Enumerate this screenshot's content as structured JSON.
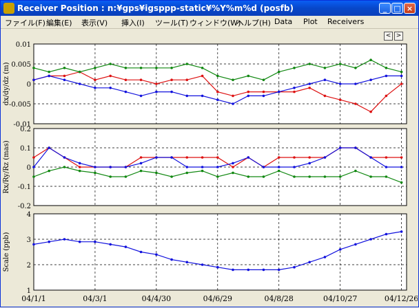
{
  "window": {
    "title": "Receiver Position : n:¥gps¥igsppp-static¥%Y%m%d (posfb)",
    "minimize": "_",
    "maximize": "□",
    "close": "×"
  },
  "menu": [
    {
      "label": "ファイル(F)"
    },
    {
      "label": "編集(E)"
    },
    {
      "label": "表示(V)"
    },
    {
      "label": "挿入(I)"
    },
    {
      "label": "ツール(T)"
    },
    {
      "label": "ウィンドウ(W)"
    },
    {
      "label": "ヘルプ(H)"
    },
    {
      "label": "Data"
    },
    {
      "label": "Plot"
    },
    {
      "label": "Receivers"
    }
  ],
  "nav": {
    "prev": "<",
    "next": ">"
  },
  "colors": {
    "series1": "#dd1111",
    "series2": "#118811",
    "series3": "#1111dd",
    "grid": "#000000"
  },
  "x_ticks": [
    "04/1/1",
    "04/3/1",
    "04/4/30",
    "04/6/29",
    "04/8/28",
    "04/10/27",
    "04/12/26"
  ],
  "chart_data": [
    {
      "type": "line",
      "ylabel": "dx/dy/dz (m)",
      "ylim": [
        -0.01,
        0.01
      ],
      "y_ticks": [
        "0.01",
        "0.005",
        "0",
        "-0.005",
        "-0.01"
      ],
      "xlim": [
        "04/1/1",
        "04/12/31"
      ],
      "series": [
        {
          "color": "#dd1111",
          "points": [
            [
              0,
              0.001
            ],
            [
              15,
              0.002
            ],
            [
              30,
              0.002
            ],
            [
              45,
              0.003
            ],
            [
              60,
              0.001
            ],
            [
              75,
              0.002
            ],
            [
              90,
              0.001
            ],
            [
              105,
              0.001
            ],
            [
              120,
              0
            ],
            [
              135,
              0.001
            ],
            [
              150,
              0.001
            ],
            [
              165,
              0.002
            ],
            [
              180,
              -0.002
            ],
            [
              195,
              -0.003
            ],
            [
              210,
              -0.002
            ],
            [
              225,
              -0.002
            ],
            [
              240,
              -0.002
            ],
            [
              255,
              -0.002
            ],
            [
              270,
              -0.001
            ],
            [
              285,
              -0.003
            ],
            [
              300,
              -0.004
            ],
            [
              315,
              -0.005
            ],
            [
              330,
              -0.007
            ],
            [
              345,
              -0.003
            ],
            [
              360,
              0
            ]
          ]
        },
        {
          "color": "#118811",
          "points": [
            [
              0,
              0.004
            ],
            [
              15,
              0.003
            ],
            [
              30,
              0.004
            ],
            [
              45,
              0.003
            ],
            [
              60,
              0.004
            ],
            [
              75,
              0.005
            ],
            [
              90,
              0.004
            ],
            [
              105,
              0.004
            ],
            [
              120,
              0.004
            ],
            [
              135,
              0.004
            ],
            [
              150,
              0.005
            ],
            [
              165,
              0.004
            ],
            [
              180,
              0.002
            ],
            [
              195,
              0.001
            ],
            [
              210,
              0.002
            ],
            [
              225,
              0.001
            ],
            [
              240,
              0.003
            ],
            [
              255,
              0.004
            ],
            [
              270,
              0.005
            ],
            [
              285,
              0.004
            ],
            [
              300,
              0.005
            ],
            [
              315,
              0.004
            ],
            [
              330,
              0.006
            ],
            [
              345,
              0.004
            ],
            [
              360,
              0.003
            ]
          ]
        },
        {
          "color": "#1111dd",
          "points": [
            [
              0,
              0.001
            ],
            [
              15,
              0.002
            ],
            [
              30,
              0.001
            ],
            [
              45,
              0
            ],
            [
              60,
              -0.001
            ],
            [
              75,
              -0.001
            ],
            [
              90,
              -0.002
            ],
            [
              105,
              -0.003
            ],
            [
              120,
              -0.002
            ],
            [
              135,
              -0.002
            ],
            [
              150,
              -0.003
            ],
            [
              165,
              -0.003
            ],
            [
              180,
              -0.004
            ],
            [
              195,
              -0.005
            ],
            [
              210,
              -0.003
            ],
            [
              225,
              -0.003
            ],
            [
              240,
              -0.002
            ],
            [
              255,
              -0.001
            ],
            [
              270,
              0
            ],
            [
              285,
              0.001
            ],
            [
              300,
              0
            ],
            [
              315,
              0
            ],
            [
              330,
              0.001
            ],
            [
              345,
              0.002
            ],
            [
              360,
              0.002
            ]
          ]
        }
      ]
    },
    {
      "type": "line",
      "ylabel": "Rx/Ry/Rz (mas)",
      "ylim": [
        -0.2,
        0.2
      ],
      "y_ticks": [
        "0.2",
        "0.1",
        "0",
        "-0.1",
        "-0.2"
      ],
      "xlim": [
        "04/1/1",
        "04/12/31"
      ],
      "series": [
        {
          "color": "#dd1111",
          "points": [
            [
              0,
              0.05
            ],
            [
              15,
              0.1
            ],
            [
              30,
              0.05
            ],
            [
              45,
              0
            ],
            [
              60,
              0
            ],
            [
              75,
              0
            ],
            [
              90,
              0
            ],
            [
              105,
              0.05
            ],
            [
              120,
              0.05
            ],
            [
              135,
              0.05
            ],
            [
              150,
              0.05
            ],
            [
              165,
              0.05
            ],
            [
              180,
              0.05
            ],
            [
              195,
              0
            ],
            [
              210,
              0.05
            ],
            [
              225,
              0
            ],
            [
              240,
              0.05
            ],
            [
              255,
              0.05
            ],
            [
              270,
              0.05
            ],
            [
              285,
              0.05
            ],
            [
              300,
              0.1
            ],
            [
              315,
              0.1
            ],
            [
              330,
              0.05
            ],
            [
              345,
              0.05
            ],
            [
              360,
              0.05
            ]
          ]
        },
        {
          "color": "#118811",
          "points": [
            [
              0,
              -0.05
            ],
            [
              15,
              -0.02
            ],
            [
              30,
              0
            ],
            [
              45,
              -0.02
            ],
            [
              60,
              -0.03
            ],
            [
              75,
              -0.05
            ],
            [
              90,
              -0.05
            ],
            [
              105,
              -0.02
            ],
            [
              120,
              -0.03
            ],
            [
              135,
              -0.05
            ],
            [
              150,
              -0.03
            ],
            [
              165,
              -0.02
            ],
            [
              180,
              -0.05
            ],
            [
              195,
              -0.03
            ],
            [
              210,
              -0.05
            ],
            [
              225,
              -0.05
            ],
            [
              240,
              -0.02
            ],
            [
              255,
              -0.05
            ],
            [
              270,
              -0.05
            ],
            [
              285,
              -0.05
            ],
            [
              300,
              -0.05
            ],
            [
              315,
              -0.02
            ],
            [
              330,
              -0.05
            ],
            [
              345,
              -0.05
            ],
            [
              360,
              -0.08
            ]
          ]
        },
        {
          "color": "#1111dd",
          "points": [
            [
              0,
              0
            ],
            [
              15,
              0.1
            ],
            [
              30,
              0.05
            ],
            [
              45,
              0.02
            ],
            [
              60,
              0
            ],
            [
              75,
              0
            ],
            [
              90,
              0
            ],
            [
              105,
              0.02
            ],
            [
              120,
              0.05
            ],
            [
              135,
              0.05
            ],
            [
              150,
              0
            ],
            [
              165,
              0
            ],
            [
              180,
              0
            ],
            [
              195,
              0.02
            ],
            [
              210,
              0.05
            ],
            [
              225,
              0
            ],
            [
              240,
              0
            ],
            [
              255,
              0
            ],
            [
              270,
              0.02
            ],
            [
              285,
              0.05
            ],
            [
              300,
              0.1
            ],
            [
              315,
              0.1
            ],
            [
              330,
              0.05
            ],
            [
              345,
              0
            ],
            [
              360,
              0
            ]
          ]
        }
      ]
    },
    {
      "type": "line",
      "ylabel": "Scale (ppb)",
      "ylim": [
        1,
        4
      ],
      "y_ticks": [
        "4",
        "3",
        "2",
        "1"
      ],
      "xlim": [
        "04/1/1",
        "04/12/31"
      ],
      "series": [
        {
          "color": "#1111dd",
          "points": [
            [
              0,
              2.8
            ],
            [
              15,
              2.9
            ],
            [
              30,
              3.0
            ],
            [
              45,
              2.9
            ],
            [
              60,
              2.9
            ],
            [
              75,
              2.8
            ],
            [
              90,
              2.7
            ],
            [
              105,
              2.5
            ],
            [
              120,
              2.4
            ],
            [
              135,
              2.2
            ],
            [
              150,
              2.1
            ],
            [
              165,
              2.0
            ],
            [
              180,
              1.9
            ],
            [
              195,
              1.8
            ],
            [
              210,
              1.8
            ],
            [
              225,
              1.8
            ],
            [
              240,
              1.8
            ],
            [
              255,
              1.9
            ],
            [
              270,
              2.1
            ],
            [
              285,
              2.3
            ],
            [
              300,
              2.6
            ],
            [
              315,
              2.8
            ],
            [
              330,
              3.0
            ],
            [
              345,
              3.2
            ],
            [
              360,
              3.3
            ]
          ]
        }
      ]
    }
  ]
}
